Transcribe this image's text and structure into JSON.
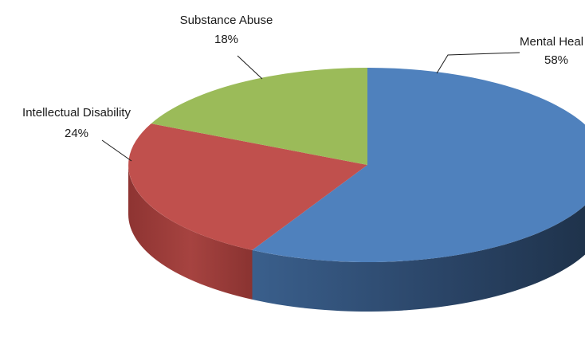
{
  "chart_data": {
    "type": "pie",
    "style": "3d",
    "slices": [
      {
        "label": "Mental Health",
        "label_shown": "Mental Heal",
        "value": 58,
        "value_label": "58%",
        "color": "#4f81bd"
      },
      {
        "label": "Intellectual Disability",
        "label_shown": "Intellectual Disability",
        "value": 24,
        "value_label": "24%",
        "color": "#c0504d"
      },
      {
        "label": "Substance Abuse",
        "label_shown": "Substance Abuse",
        "value": 18,
        "value_label": "18%",
        "color": "#9bbb59"
      }
    ],
    "legend": "none"
  }
}
